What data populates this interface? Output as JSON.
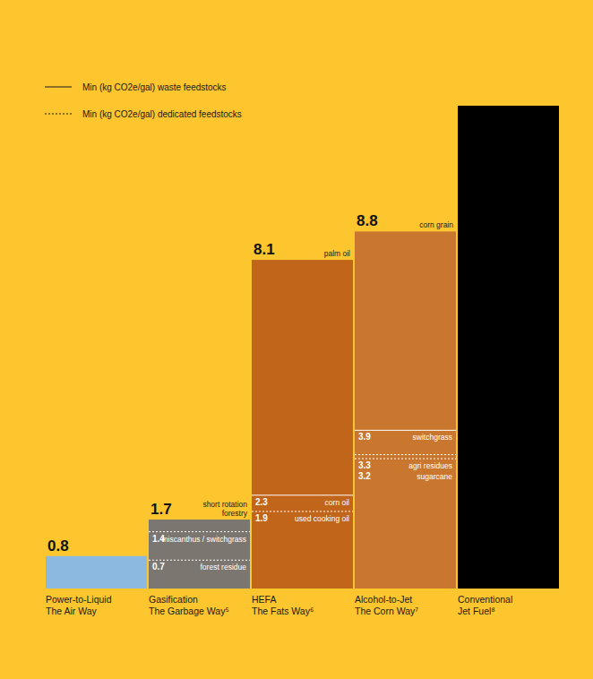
{
  "chart_data": {
    "type": "bar",
    "categories": [
      "Power-to-Liquid\nThe Air Way",
      "Gasification\nThe Garbage Way⁵",
      "HEFA\nThe Fats Way⁶",
      "Alcohol-to-Jet\nThe Corn Way⁷",
      "Conventional\nJet Fuel⁸"
    ],
    "values": [
      0.8,
      1.7,
      8.1,
      8.8,
      11.9
    ],
    "colors": [
      "#8bb9e0",
      "#7b766f",
      "#c0651a",
      "#c9772e",
      "#000000"
    ],
    "top_labels": [
      null,
      "short rotation forestry",
      "palm oil",
      "corn grain",
      null
    ],
    "minima": [
      [],
      [
        {
          "value": 1.4,
          "label": "miscanthus / switchgrass",
          "line_style": "dotted"
        },
        {
          "value": 0.7,
          "label": "forest residue",
          "line_style": "dotted"
        }
      ],
      [
        {
          "value": 2.3,
          "label": "corn oil",
          "line_style": "solid"
        },
        {
          "value": 1.9,
          "label": "used cooking oil",
          "line_style": "dotted"
        }
      ],
      [
        {
          "value": 3.9,
          "label": "switchgrass",
          "line_style": "solid"
        },
        {
          "value": 3.3,
          "label": "agri residues",
          "line_style": "dotted"
        },
        {
          "value": 3.2,
          "label": "sugarcane",
          "line_style": "dotted"
        }
      ],
      []
    ],
    "legend_items": [
      {
        "label": "Min (kg CO2e/gal) waste feedstocks",
        "line_style": "solid"
      },
      {
        "label": "Min (kg CO2e/gal) dedicated feedstocks",
        "line_style": "dotted"
      }
    ],
    "legend": "upper left",
    "ylim": [
      0,
      11.9
    ],
    "data_labels": true,
    "tick_labels": "x"
  }
}
